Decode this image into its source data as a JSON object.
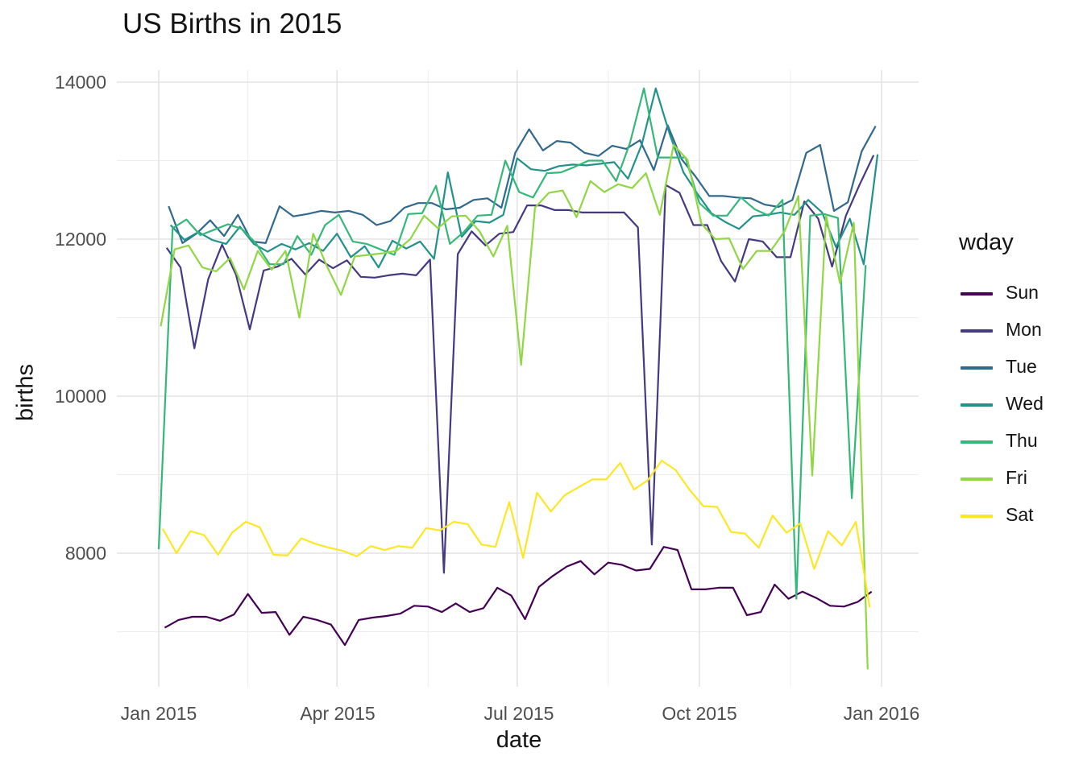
{
  "title": "US Births in 2015",
  "axes": {
    "x": {
      "label": "date",
      "ticks": [
        "Jan 2015",
        "Apr 2015",
        "Jul 2015",
        "Oct 2015",
        "Jan 2016"
      ]
    },
    "y": {
      "label": "births",
      "ticks": [
        "14000",
        "12000",
        "10000",
        "8000"
      ]
    }
  },
  "legend": {
    "title": "wday",
    "entries": [
      {
        "label": "Sun",
        "color": "#440154"
      },
      {
        "label": "Mon",
        "color": "#443983"
      },
      {
        "label": "Tue",
        "color": "#31688e"
      },
      {
        "label": "Wed",
        "color": "#21918c"
      },
      {
        "label": "Thu",
        "color": "#35b779"
      },
      {
        "label": "Fri",
        "color": "#90d743"
      },
      {
        "label": "Sat",
        "color": "#fde725"
      }
    ]
  },
  "chart_data": {
    "type": "line",
    "title": "US Births in 2015",
    "xlabel": "date",
    "ylabel": "births",
    "x_unit": "day_of_year_2015",
    "x_axis_tick_days": [
      1,
      91,
      182,
      274,
      366
    ],
    "x_minor_gridline_days": [
      46,
      137,
      228,
      320
    ],
    "y_major_gridlines": [
      8000,
      10000,
      12000,
      14000
    ],
    "y_minor_gridlines": [
      7000,
      9000,
      11000,
      13000
    ],
    "ylim": [
      6300,
      14150
    ],
    "grid": true,
    "legend_position": "right",
    "gridline_major_color": "#e4e4e4",
    "gridline_minor_color": "#ededed",
    "background_color": "#ffffff",
    "series": [
      {
        "name": "Sun",
        "color": "#440154",
        "start_day": 4,
        "step_days": 7,
        "values": [
          7050,
          7150,
          7190,
          7190,
          7140,
          7220,
          7480,
          7240,
          7250,
          6960,
          7190,
          7150,
          7090,
          6830,
          7150,
          7180,
          7200,
          7230,
          7330,
          7320,
          7250,
          7360,
          7250,
          7300,
          7560,
          7460,
          7160,
          7570,
          7710,
          7830,
          7900,
          7730,
          7880,
          7850,
          7780,
          7800,
          8080,
          8040,
          7540,
          7540,
          7560,
          7560,
          7210,
          7250,
          7600,
          7420,
          7510,
          7430,
          7330,
          7320,
          7380,
          7510
        ]
      },
      {
        "name": "Mon",
        "color": "#443983",
        "start_day": 5,
        "step_days": 7,
        "values": [
          11890,
          11640,
          10610,
          11490,
          11930,
          11550,
          10850,
          11600,
          11650,
          11750,
          11550,
          11740,
          11630,
          11730,
          11520,
          11510,
          11540,
          11560,
          11540,
          11740,
          7750,
          11810,
          12100,
          11920,
          12070,
          12090,
          12430,
          12430,
          12370,
          12370,
          12340,
          12340,
          12340,
          12340,
          12150,
          8110,
          12690,
          12590,
          12180,
          12180,
          11720,
          11460,
          12000,
          11970,
          11770,
          11770,
          12480,
          12260,
          11650,
          12300,
          12700,
          13070
        ]
      },
      {
        "name": "Tue",
        "color": "#31688e",
        "start_day": 6,
        "step_days": 7,
        "values": [
          12420,
          11950,
          12070,
          12240,
          12040,
          12310,
          11970,
          11950,
          12420,
          12290,
          12320,
          12360,
          12340,
          12360,
          12310,
          12180,
          12230,
          12400,
          12460,
          12460,
          12380,
          12400,
          12500,
          12520,
          12400,
          13100,
          13400,
          13130,
          13250,
          13230,
          13100,
          13060,
          13190,
          13150,
          13260,
          12880,
          13450,
          13020,
          12800,
          12550,
          12550,
          12530,
          12520,
          12440,
          12410,
          12500,
          13100,
          13200,
          12360,
          12470,
          13120,
          13440
        ]
      },
      {
        "name": "Wed",
        "color": "#21918c",
        "start_day": 7,
        "step_days": 7,
        "values": [
          12180,
          11990,
          12090,
          11990,
          11940,
          12160,
          11940,
          11840,
          11940,
          11870,
          11950,
          11850,
          12070,
          11770,
          11910,
          11640,
          11980,
          11880,
          11970,
          11750,
          12850,
          12030,
          12230,
          12210,
          12310,
          13030,
          12890,
          12870,
          12930,
          12950,
          12940,
          12960,
          12980,
          12770,
          13210,
          13920,
          13340,
          12850,
          12580,
          12330,
          12220,
          12130,
          12290,
          12310,
          12340,
          12310,
          12500,
          12340,
          11900,
          12260,
          11680,
          13080
        ]
      },
      {
        "name": "Thu",
        "color": "#35b779",
        "start_day": 1,
        "step_days": 7,
        "values": [
          8050,
          12140,
          12250,
          12050,
          12120,
          12190,
          12130,
          11950,
          11680,
          11680,
          12040,
          11800,
          12180,
          12310,
          11970,
          11940,
          11870,
          11800,
          12320,
          12330,
          12680,
          11940,
          12090,
          12300,
          12310,
          13000,
          12600,
          12530,
          12840,
          12850,
          12920,
          13000,
          13000,
          12740,
          13230,
          13920,
          13040,
          13040,
          13040,
          12460,
          12300,
          12300,
          12530,
          12380,
          12300,
          12500,
          7420,
          12300,
          12320,
          12270,
          8700,
          11670
        ]
      },
      {
        "name": "Fri",
        "color": "#90d743",
        "start_day": 2,
        "step_days": 7,
        "values": [
          10890,
          11870,
          11920,
          11640,
          11590,
          11760,
          11360,
          11850,
          11610,
          11850,
          11000,
          12070,
          11650,
          11290,
          11780,
          11800,
          11820,
          11850,
          12000,
          12300,
          12140,
          12290,
          12300,
          12100,
          11780,
          12170,
          10400,
          12400,
          12590,
          12620,
          12280,
          12740,
          12600,
          12700,
          12650,
          12840,
          12310,
          13200,
          13010,
          12200,
          12000,
          12010,
          11620,
          11850,
          11850,
          12100,
          12550,
          8990,
          12300,
          11440,
          12210,
          6520
        ]
      },
      {
        "name": "Sat",
        "color": "#fde725",
        "start_day": 3,
        "step_days": 7,
        "values": [
          8310,
          8000,
          8280,
          8230,
          7980,
          8260,
          8400,
          8330,
          7980,
          7970,
          8190,
          8120,
          8070,
          8030,
          7960,
          8090,
          8040,
          8090,
          8070,
          8320,
          8290,
          8400,
          8370,
          8110,
          8080,
          8650,
          7940,
          8770,
          8530,
          8740,
          8840,
          8940,
          8940,
          9150,
          8810,
          8930,
          9180,
          9060,
          8810,
          8600,
          8590,
          8270,
          8250,
          8070,
          8480,
          8260,
          8380,
          7800,
          8280,
          8100,
          8400,
          7310
        ]
      }
    ]
  }
}
